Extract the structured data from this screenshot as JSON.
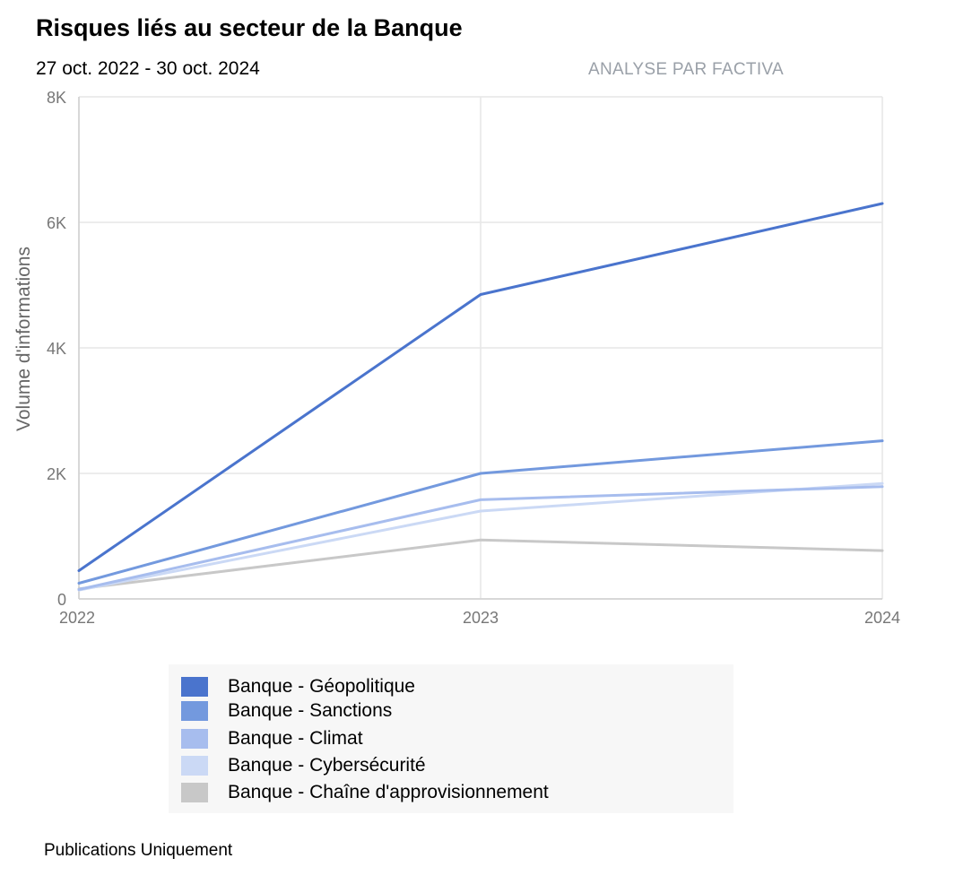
{
  "header": {
    "title": "Risques liés au secteur de la Banque",
    "subtitle": "27 oct. 2022 - 30 oct. 2024",
    "source": "ANALYSE PAR FACTIVA"
  },
  "footer": {
    "text": "Publications Uniquement"
  },
  "chart_data": {
    "type": "line",
    "title": "Risques liés au secteur de la Banque",
    "subtitle": "27 oct. 2022 - 30 oct. 2024",
    "xlabel": "",
    "ylabel": "Volume d'informations",
    "x": [
      2022,
      2023,
      2024
    ],
    "x_tick_labels": [
      "2022",
      "2023",
      "2024"
    ],
    "ylim": [
      0,
      8000
    ],
    "y_ticks": [
      0,
      2000,
      4000,
      6000,
      8000
    ],
    "y_tick_labels": [
      "0",
      "2K",
      "4K",
      "6K",
      "8K"
    ],
    "grid": true,
    "legend_position": "bottom",
    "series": [
      {
        "name": "Banque - Géopolitique",
        "color": "#4a74cd",
        "values": [
          450,
          4850,
          6300
        ]
      },
      {
        "name": "Banque - Sanctions",
        "color": "#7399de",
        "values": [
          250,
          2000,
          2520
        ]
      },
      {
        "name": "Banque - Climat",
        "color": "#a7bdee",
        "values": [
          150,
          1580,
          1790
        ]
      },
      {
        "name": "Banque - Cybersécurité",
        "color": "#cbd9f5",
        "values": [
          140,
          1400,
          1840
        ]
      },
      {
        "name": "Banque - Chaîne d'approvisionnement",
        "color": "#c8c8c8",
        "values": [
          160,
          940,
          770
        ]
      }
    ]
  }
}
